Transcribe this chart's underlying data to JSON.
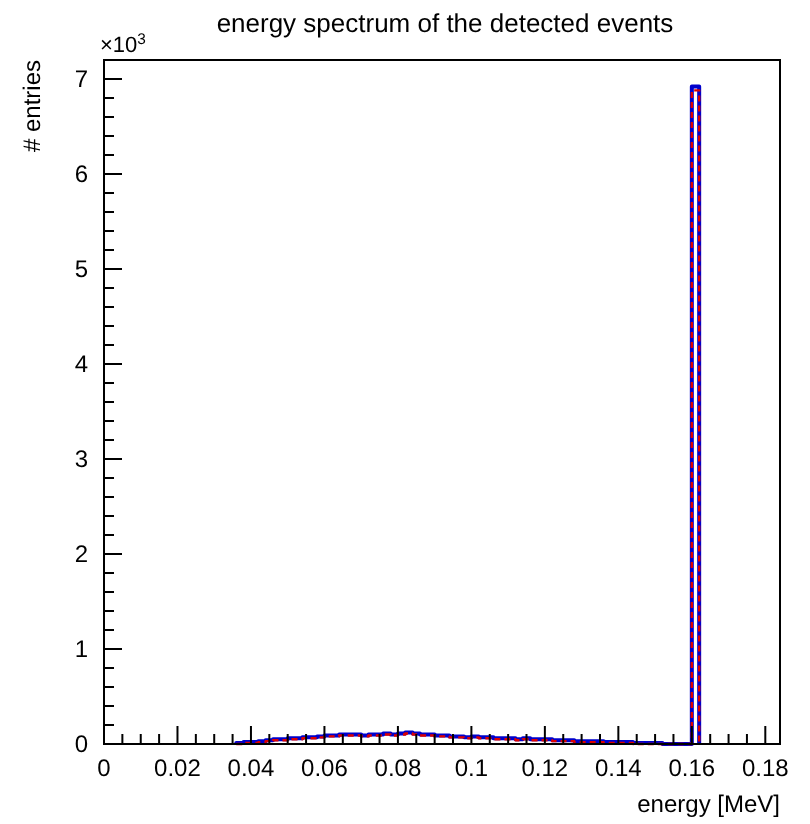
{
  "chart_data": {
    "type": "histogram",
    "title": "energy spectrum of the detected events",
    "xlabel": "energy [MeV]",
    "ylabel": "# entries",
    "annotations": [
      "×10$^{3}$"
    ],
    "bins": [
      0.036,
      0.038,
      0.04,
      0.042,
      0.044,
      0.046,
      0.048,
      0.05,
      0.052,
      0.054,
      0.056,
      0.058,
      0.06,
      0.062,
      0.064,
      0.066,
      0.068,
      0.07,
      0.072,
      0.074,
      0.076,
      0.078,
      0.08,
      0.082,
      0.084,
      0.086,
      0.088,
      0.09,
      0.092,
      0.094,
      0.096,
      0.098,
      0.1,
      0.102,
      0.104,
      0.106,
      0.108,
      0.11,
      0.112,
      0.114,
      0.116,
      0.118,
      0.12,
      0.122,
      0.124,
      0.126,
      0.128,
      0.13,
      0.132,
      0.134,
      0.136,
      0.138,
      0.14,
      0.142,
      0.144,
      0.146,
      0.148,
      0.15,
      0.152,
      0.154,
      0.156,
      0.158,
      0.16,
      0.162
    ],
    "series": [
      {
        "color": "#0000cc",
        "line_style": "solid",
        "values": [
          0.01,
          0.02,
          0.02,
          0.03,
          0.04,
          0.05,
          0.05,
          0.06,
          0.06,
          0.07,
          0.07,
          0.08,
          0.09,
          0.09,
          0.1,
          0.1,
          0.1,
          0.09,
          0.1,
          0.1,
          0.11,
          0.1,
          0.11,
          0.12,
          0.11,
          0.1,
          0.1,
          0.09,
          0.09,
          0.08,
          0.08,
          0.07,
          0.08,
          0.07,
          0.07,
          0.06,
          0.06,
          0.06,
          0.05,
          0.06,
          0.05,
          0.05,
          0.05,
          0.04,
          0.04,
          0.04,
          0.03,
          0.03,
          0.03,
          0.03,
          0.02,
          0.02,
          0.02,
          0.02,
          0.01,
          0.01,
          0.01,
          0.01,
          0,
          0,
          0,
          0,
          6.92
        ]
      },
      {
        "color": "#dd0000",
        "line_style": "dashed",
        "values": [
          0,
          0.01,
          0.01,
          0.02,
          0.03,
          0.04,
          0.04,
          0.05,
          0.05,
          0.06,
          0.06,
          0.07,
          0.08,
          0.08,
          0.09,
          0.09,
          0.09,
          0.08,
          0.09,
          0.09,
          0.1,
          0.09,
          0.1,
          0.11,
          0.1,
          0.09,
          0.09,
          0.08,
          0.08,
          0.07,
          0.07,
          0.06,
          0.07,
          0.06,
          0.06,
          0.05,
          0.05,
          0.05,
          0.04,
          0.05,
          0.04,
          0.04,
          0.04,
          0.03,
          0.03,
          0.03,
          0.02,
          0.02,
          0.02,
          0.02,
          0.01,
          0.01,
          0.01,
          0.01,
          0,
          0,
          0,
          0,
          0,
          0,
          0,
          0,
          6.88
        ]
      }
    ],
    "xlim": [
      0,
      0.184
    ],
    "xticks": [
      0,
      0.02,
      0.04,
      0.06,
      0.08,
      0.1,
      0.12,
      0.14,
      0.16,
      0.18
    ],
    "ylim": [
      0,
      7.2
    ],
    "yticks": [
      0,
      1,
      2,
      3,
      4,
      5,
      6,
      7
    ],
    "grid": false
  }
}
